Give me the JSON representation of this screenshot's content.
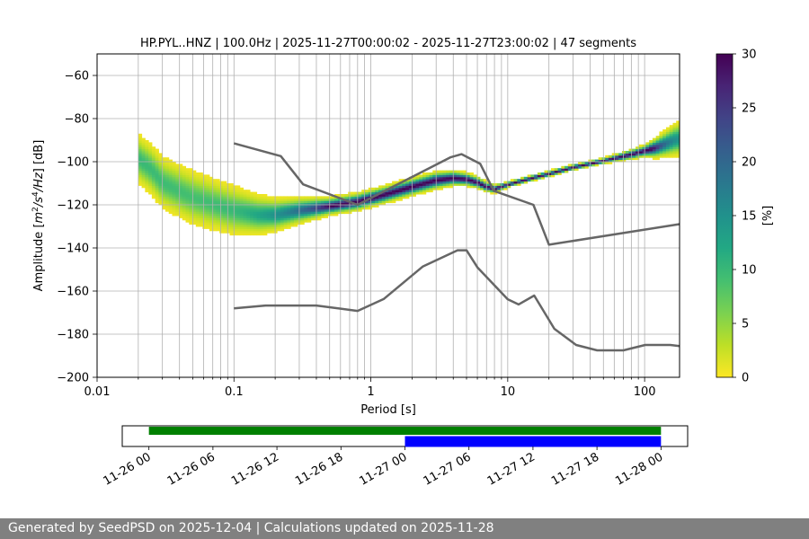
{
  "title": "HP.PYL..HNZ | 100.0Hz | 2025-11-27T00:00:02 - 2025-11-27T23:00:02 | 47 segments",
  "footer": "Generated by SeedPSD on 2025-12-04 | Calculations updated on 2025-11-28",
  "chart_data": [
    {
      "type": "heatmap",
      "name": "PPSD",
      "title": "HP.PYL..HNZ | 100.0Hz | 2025-11-27T00:00:02 - 2025-11-27T23:00:02 | 47 segments",
      "xlabel": "Period [s]",
      "ylabel_parts": [
        "Amplitude [",
        "m",
        "2",
        "/s",
        "4",
        "/Hz",
        "] [dB]"
      ],
      "x_scale": "log",
      "xlim": [
        0.01,
        180
      ],
      "ylim": [
        -200,
        -50
      ],
      "x_ticks": [
        0.01,
        0.1,
        1,
        10,
        100
      ],
      "x_tick_labels": [
        "0.01",
        "0.1",
        "1",
        "10",
        "100"
      ],
      "y_ticks": [
        -200,
        -180,
        -160,
        -140,
        -120,
        -100,
        -80,
        -60
      ],
      "y_tick_labels": [
        "−200",
        "−180",
        "−160",
        "−140",
        "−120",
        "−100",
        "−80",
        "−60"
      ],
      "grid": true,
      "colormap": "viridis_r",
      "colorbar": {
        "label": "[%]",
        "range": [
          0,
          30
        ],
        "ticks": [
          0,
          5,
          10,
          15,
          20,
          25,
          30
        ],
        "tick_labels": [
          "0",
          "5",
          "10",
          "15",
          "20",
          "25",
          "30"
        ]
      },
      "mode_curve": [
        [
          0.02,
          -99
        ],
        [
          0.025,
          -104
        ],
        [
          0.03,
          -110
        ],
        [
          0.04,
          -114
        ],
        [
          0.05,
          -117
        ],
        [
          0.07,
          -120
        ],
        [
          0.1,
          -123
        ],
        [
          0.15,
          -125
        ],
        [
          0.2,
          -125
        ],
        [
          0.3,
          -123
        ],
        [
          0.5,
          -121
        ],
        [
          0.8,
          -119
        ],
        [
          1.2,
          -116
        ],
        [
          2,
          -112
        ],
        [
          3,
          -109
        ],
        [
          4,
          -108
        ],
        [
          5,
          -108.5
        ],
        [
          6,
          -110
        ],
        [
          7,
          -112
        ],
        [
          8,
          -113
        ],
        [
          10,
          -111
        ],
        [
          15,
          -108
        ],
        [
          20,
          -106
        ],
        [
          30,
          -103
        ],
        [
          50,
          -100
        ],
        [
          80,
          -97
        ],
        [
          120,
          -94
        ],
        [
          170,
          -90
        ]
      ],
      "spread_db": [
        [
          0.02,
          9
        ],
        [
          0.05,
          10
        ],
        [
          0.1,
          9
        ],
        [
          0.2,
          6
        ],
        [
          0.5,
          3
        ],
        [
          1,
          3
        ],
        [
          3,
          3
        ],
        [
          6,
          2
        ],
        [
          10,
          1
        ],
        [
          20,
          1
        ],
        [
          50,
          1
        ],
        [
          100,
          2
        ],
        [
          170,
          6
        ]
      ],
      "noise_models": [
        {
          "name": "NHNM",
          "periods": [
            0.1,
            0.22,
            0.32,
            0.8,
            3.8,
            4.6,
            6.3,
            7.9,
            15.4,
            20,
            354.8
          ],
          "values": [
            -91.5,
            -97.4,
            -110.5,
            -120,
            -98,
            -96.5,
            -101,
            -113.5,
            -120,
            -138.5,
            -126
          ]
        },
        {
          "name": "NLNM",
          "periods": [
            0.1,
            0.17,
            0.4,
            0.8,
            1.24,
            2.4,
            4.3,
            5,
            6,
            10,
            12,
            15.6,
            21.9,
            31.6,
            45,
            70,
            101,
            154,
            328,
            600
          ],
          "values": [
            -168,
            -166.7,
            -166.7,
            -169.2,
            -163.7,
            -148.6,
            -141.1,
            -141.1,
            -149,
            -163.8,
            -166.2,
            -162.1,
            -177.5,
            -185,
            -187.5,
            -187.5,
            -185,
            -185,
            -187.5,
            -185
          ]
        }
      ]
    },
    {
      "type": "bar",
      "name": "data availability",
      "x_tick_labels": [
        "11-26 00",
        "11-26 06",
        "11-26 12",
        "11-26 18",
        "11-27 00",
        "11-27 06",
        "11-27 12",
        "11-27 18",
        "11-28 00"
      ],
      "x_range_hours": [
        -2.5,
        50.5
      ],
      "series": [
        {
          "color": "#008000",
          "start_hour": 0,
          "end_hour": 48
        },
        {
          "color": "#0000ff",
          "start_hour": 24,
          "end_hour": 48
        }
      ]
    }
  ]
}
